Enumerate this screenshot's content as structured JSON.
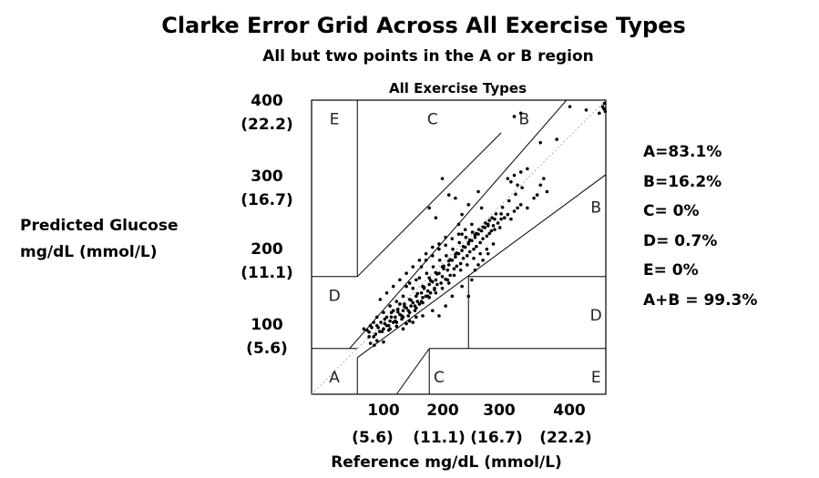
{
  "title": "Clarke Error Grid Across All Exercise Types",
  "subtitle": "All but two points in the A or B region",
  "chart_data": {
    "type": "scatter",
    "plot_title": "All Exercise Types",
    "xlabel": "Reference mg/dL (mmol/L)",
    "ylabel": [
      "Predicted Glucose",
      "mg/dL (mmol/L)"
    ],
    "xlim": [
      0,
      450
    ],
    "ylim": [
      0,
      450
    ],
    "x_ticks": [
      {
        "value": 100,
        "label": "100",
        "sublabel": "(5.6)"
      },
      {
        "value": 200,
        "label": "200",
        "sublabel": "(11.1)"
      },
      {
        "value": 300,
        "label": "300",
        "sublabel": "(16.7)"
      },
      {
        "value": 400,
        "label": "400",
        "sublabel": "(22.2)"
      }
    ],
    "y_ticks": [
      {
        "value": 100,
        "label": "100",
        "sublabel": "(5.6)"
      },
      {
        "value": 200,
        "label": "200",
        "sublabel": "(11.1)"
      },
      {
        "value": 300,
        "label": "300",
        "sublabel": "(16.7)"
      },
      {
        "value": 400,
        "label": "400",
        "sublabel": "(22.2)"
      }
    ],
    "zone_boundaries": [
      {
        "zone": "A/B upper",
        "x": [
          58.3,
          390
        ],
        "y": [
          70,
          450
        ]
      },
      {
        "zone": "A/B lower",
        "x": [
          70,
          450
        ],
        "y": [
          56,
          336
        ]
      },
      {
        "zone": "A/B left",
        "x": [
          70,
          70
        ],
        "y": [
          0,
          56
        ]
      },
      {
        "zone": "A/D left",
        "x": [
          0,
          70
        ],
        "y": [
          70,
          70
        ]
      },
      {
        "zone": "B/C upper",
        "x": [
          70,
          290
        ],
        "y": [
          180,
          400
        ]
      },
      {
        "zone": "C/E upper",
        "x": [
          70,
          70
        ],
        "y": [
          180,
          450
        ]
      },
      {
        "zone": "D/E left",
        "x": [
          0,
          70
        ],
        "y": [
          180,
          180
        ]
      },
      {
        "zone": "C lower",
        "x": [
          130,
          180
        ],
        "y": [
          0,
          70
        ]
      },
      {
        "zone": "C lower top",
        "x": [
          180,
          450
        ],
        "y": [
          70,
          70
        ]
      },
      {
        "zone": "C lower right",
        "x": [
          180,
          180
        ],
        "y": [
          0,
          70
        ]
      },
      {
        "zone": "D right",
        "x": [
          240,
          240
        ],
        "y": [
          70,
          180
        ]
      },
      {
        "zone": "D right top",
        "x": [
          240,
          450
        ],
        "y": [
          180,
          180
        ]
      }
    ],
    "region_labels": [
      {
        "text": "E",
        "x": 35,
        "y": 420
      },
      {
        "text": "C",
        "x": 185,
        "y": 420
      },
      {
        "text": "B",
        "x": 325,
        "y": 420
      },
      {
        "text": "B",
        "x": 435,
        "y": 285
      },
      {
        "text": "D",
        "x": 35,
        "y": 150
      },
      {
        "text": "D",
        "x": 435,
        "y": 120
      },
      {
        "text": "A",
        "x": 35,
        "y": 25
      },
      {
        "text": "C",
        "x": 195,
        "y": 25
      },
      {
        "text": "E",
        "x": 435,
        "y": 25
      }
    ],
    "identity_line": {
      "x": [
        0,
        450
      ],
      "y": [
        0,
        450
      ],
      "style": "dotted"
    },
    "points": [
      [
        80,
        100
      ],
      [
        88,
        95
      ],
      [
        92,
        102
      ],
      [
        95,
        88
      ],
      [
        98,
        92
      ],
      [
        100,
        105
      ],
      [
        104,
        96
      ],
      [
        106,
        110
      ],
      [
        110,
        100
      ],
      [
        112,
        115
      ],
      [
        115,
        105
      ],
      [
        118,
        98
      ],
      [
        120,
        112
      ],
      [
        122,
        125
      ],
      [
        125,
        110
      ],
      [
        128,
        118
      ],
      [
        130,
        104
      ],
      [
        132,
        130
      ],
      [
        135,
        122
      ],
      [
        138,
        115
      ],
      [
        140,
        128
      ],
      [
        142,
        138
      ],
      [
        145,
        132
      ],
      [
        148,
        120
      ],
      [
        150,
        145
      ],
      [
        152,
        135
      ],
      [
        155,
        140
      ],
      [
        158,
        128
      ],
      [
        160,
        150
      ],
      [
        162,
        142
      ],
      [
        165,
        138
      ],
      [
        168,
        155
      ],
      [
        170,
        148
      ],
      [
        172,
        162
      ],
      [
        175,
        150
      ],
      [
        178,
        158
      ],
      [
        180,
        168
      ],
      [
        182,
        155
      ],
      [
        185,
        172
      ],
      [
        188,
        162
      ],
      [
        190,
        175
      ],
      [
        192,
        168
      ],
      [
        195,
        185
      ],
      [
        198,
        170
      ],
      [
        200,
        180
      ],
      [
        202,
        192
      ],
      [
        205,
        176
      ],
      [
        208,
        190
      ],
      [
        210,
        198
      ],
      [
        212,
        182
      ],
      [
        215,
        205
      ],
      [
        218,
        192
      ],
      [
        220,
        210
      ],
      [
        222,
        196
      ],
      [
        225,
        215
      ],
      [
        228,
        200
      ],
      [
        230,
        220
      ],
      [
        232,
        208
      ],
      [
        235,
        225
      ],
      [
        238,
        212
      ],
      [
        240,
        230
      ],
      [
        242,
        218
      ],
      [
        245,
        235
      ],
      [
        248,
        222
      ],
      [
        250,
        240
      ],
      [
        252,
        226
      ],
      [
        255,
        245
      ],
      [
        258,
        232
      ],
      [
        260,
        250
      ],
      [
        262,
        238
      ],
      [
        265,
        255
      ],
      [
        268,
        242
      ],
      [
        270,
        260
      ],
      [
        272,
        246
      ],
      [
        275,
        250
      ],
      [
        278,
        258
      ],
      [
        280,
        252
      ],
      [
        285,
        262
      ],
      [
        288,
        255
      ],
      [
        290,
        268
      ],
      [
        295,
        270
      ],
      [
        300,
        275
      ],
      [
        305,
        268
      ],
      [
        310,
        280
      ],
      [
        315,
        285
      ],
      [
        320,
        290
      ],
      [
        168,
        195
      ],
      [
        175,
        205
      ],
      [
        185,
        212
      ],
      [
        195,
        222
      ],
      [
        205,
        228
      ],
      [
        215,
        238
      ],
      [
        225,
        245
      ],
      [
        235,
        252
      ],
      [
        245,
        260
      ],
      [
        150,
        170
      ],
      [
        160,
        175
      ],
      [
        140,
        150
      ],
      [
        130,
        142
      ],
      [
        120,
        135
      ],
      [
        110,
        125
      ],
      [
        100,
        118
      ],
      [
        95,
        110
      ],
      [
        90,
        105
      ],
      [
        85,
        98
      ],
      [
        145,
        165
      ],
      [
        155,
        162
      ],
      [
        165,
        178
      ],
      [
        176,
        185
      ],
      [
        186,
        195
      ],
      [
        196,
        205
      ],
      [
        206,
        212
      ],
      [
        216,
        222
      ],
      [
        226,
        232
      ],
      [
        236,
        240
      ],
      [
        246,
        248
      ],
      [
        256,
        252
      ],
      [
        266,
        262
      ],
      [
        276,
        270
      ],
      [
        208,
        175
      ],
      [
        218,
        182
      ],
      [
        228,
        190
      ],
      [
        238,
        198
      ],
      [
        248,
        208
      ],
      [
        258,
        215
      ],
      [
        268,
        222
      ],
      [
        278,
        230
      ],
      [
        188,
        160
      ],
      [
        178,
        150
      ],
      [
        168,
        142
      ],
      [
        158,
        135
      ],
      [
        148,
        128
      ],
      [
        138,
        120
      ],
      [
        128,
        112
      ],
      [
        118,
        105
      ],
      [
        108,
        96
      ],
      [
        230,
        275
      ],
      [
        240,
        290
      ],
      [
        260,
        285
      ],
      [
        255,
        310
      ],
      [
        300,
        330
      ],
      [
        305,
        325
      ],
      [
        310,
        335
      ],
      [
        315,
        320
      ],
      [
        320,
        340
      ],
      [
        330,
        345
      ],
      [
        350,
        320
      ],
      [
        355,
        330
      ],
      [
        340,
        300
      ],
      [
        345,
        305
      ],
      [
        330,
        285
      ],
      [
        360,
        310
      ],
      [
        375,
        390
      ],
      [
        395,
        440
      ],
      [
        420,
        435
      ],
      [
        440,
        430
      ],
      [
        445,
        440
      ],
      [
        448,
        445
      ],
      [
        447,
        437
      ],
      [
        449,
        433
      ],
      [
        310,
        425
      ],
      [
        320,
        430
      ],
      [
        200,
        330
      ],
      [
        210,
        305
      ],
      [
        180,
        285
      ],
      [
        190,
        270
      ],
      [
        220,
        300
      ],
      [
        225,
        260
      ],
      [
        230,
        245
      ],
      [
        205,
        240
      ],
      [
        195,
        230
      ],
      [
        185,
        225
      ],
      [
        175,
        215
      ],
      [
        165,
        205
      ],
      [
        155,
        195
      ],
      [
        145,
        185
      ],
      [
        135,
        175
      ],
      [
        125,
        165
      ],
      [
        115,
        155
      ],
      [
        105,
        145
      ],
      [
        115,
        118
      ],
      [
        125,
        128
      ],
      [
        135,
        138
      ],
      [
        170,
        165
      ],
      [
        180,
        178
      ],
      [
        190,
        186
      ],
      [
        200,
        195
      ],
      [
        210,
        204
      ],
      [
        220,
        214
      ],
      [
        240,
        232
      ],
      [
        250,
        244
      ],
      [
        270,
        258
      ],
      [
        280,
        268
      ],
      [
        290,
        276
      ],
      [
        120,
        100
      ],
      [
        130,
        110
      ],
      [
        140,
        118
      ],
      [
        150,
        125
      ],
      [
        160,
        132
      ],
      [
        170,
        140
      ],
      [
        180,
        148
      ],
      [
        190,
        155
      ],
      [
        200,
        162
      ],
      [
        210,
        170
      ],
      [
        195,
        120
      ],
      [
        240,
        150
      ],
      [
        205,
        135
      ],
      [
        230,
        165
      ],
      [
        170,
        120
      ],
      [
        155,
        110
      ],
      [
        185,
        128
      ],
      [
        215,
        150
      ],
      [
        245,
        175
      ],
      [
        250,
        190
      ],
      [
        255,
        198
      ],
      [
        262,
        205
      ],
      [
        270,
        215
      ],
      [
        110,
        80
      ],
      [
        100,
        82
      ],
      [
        96,
        75
      ],
      [
        90,
        78
      ],
      [
        140,
        100
      ],
      [
        145,
        108
      ],
      [
        150,
        112
      ],
      [
        160,
        118
      ],
      [
        88,
        88
      ],
      [
        102,
        102
      ],
      [
        112,
        108
      ],
      [
        122,
        118
      ],
      [
        132,
        126
      ],
      [
        142,
        134
      ],
      [
        152,
        144
      ],
      [
        162,
        154
      ],
      [
        172,
        164
      ],
      [
        182,
        174
      ],
      [
        192,
        184
      ],
      [
        202,
        196
      ],
      [
        212,
        206
      ],
      [
        222,
        216
      ],
      [
        232,
        226
      ],
      [
        242,
        236
      ],
      [
        252,
        246
      ],
      [
        262,
        256
      ],
      [
        272,
        266
      ],
      [
        282,
        276
      ],
      [
        292,
        286
      ],
      [
        302,
        296
      ],
      [
        312,
        306
      ],
      [
        322,
        316
      ],
      [
        350,
        385
      ]
    ]
  },
  "stats": [
    "A=83.1%",
    "B=16.2%",
    "C= 0%",
    "D= 0.7%",
    "E= 0%",
    "A+B = 99.3%"
  ]
}
